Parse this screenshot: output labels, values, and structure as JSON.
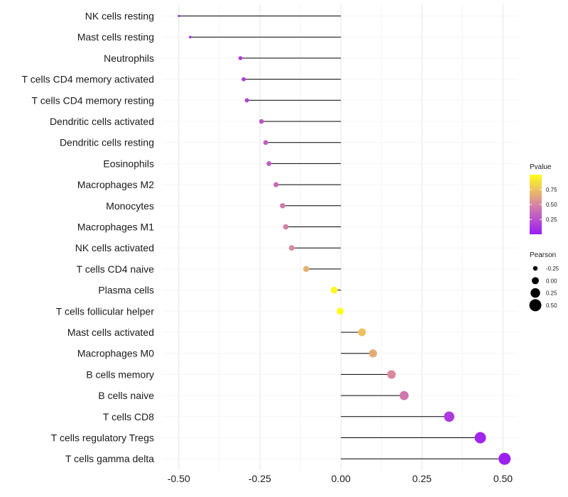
{
  "chart_data": {
    "type": "lollipop",
    "title": "",
    "xlabel": "",
    "ylabel": "",
    "xlim": [
      -0.55,
      0.545
    ],
    "xticks": [
      -0.5,
      -0.25,
      0.0,
      0.25,
      0.5
    ],
    "xtick_labels": [
      "-0.50",
      "-0.25",
      "0.00",
      "0.25",
      "0.50"
    ],
    "grid": true,
    "categories": [
      "NK cells resting",
      "Mast cells resting",
      "Neutrophils",
      "T cells CD4 memory activated",
      "T cells CD4 memory resting",
      "Dendritic cells activated",
      "Dendritic cells resting",
      "Eosinophils",
      "Macrophages M2",
      "Monocytes",
      "Macrophages M1",
      "NK cells activated",
      "T cells CD4 naive",
      "Plasma cells",
      "T cells follicular helper",
      "Mast cells activated",
      "Macrophages M0",
      "B cells memory",
      "B cells naive",
      "T cells CD8",
      "T cells regulatory  Tregs",
      "T cells gamma delta"
    ],
    "pearson": [
      -0.5,
      -0.465,
      -0.31,
      -0.3,
      -0.29,
      -0.245,
      -0.232,
      -0.222,
      -0.2,
      -0.18,
      -0.17,
      -0.152,
      -0.107,
      -0.021,
      -0.002,
      0.065,
      0.099,
      0.156,
      0.195,
      0.334,
      0.43,
      0.505
    ],
    "pvalue": [
      0.02,
      0.03,
      0.15,
      0.16,
      0.17,
      0.28,
      0.3,
      0.32,
      0.38,
      0.45,
      0.48,
      0.53,
      0.68,
      0.97,
      0.99,
      0.75,
      0.66,
      0.52,
      0.43,
      0.15,
      0.05,
      0.02
    ],
    "color_legend": {
      "title": "Pvalue",
      "ticks": [
        0.25,
        0.5,
        0.75
      ],
      "tick_labels": [
        "0.25",
        "0.50",
        "0.75"
      ],
      "range": [
        0.0,
        1.0
      ],
      "colors": [
        "#9a1bf5",
        "#d785a3",
        "#ffff1a"
      ]
    },
    "size_legend": {
      "title": "Pearson",
      "values": [
        -0.25,
        0.0,
        0.25,
        0.5
      ],
      "labels": [
        "-0.25",
        "0.00",
        "0.25",
        "0.50"
      ]
    }
  }
}
